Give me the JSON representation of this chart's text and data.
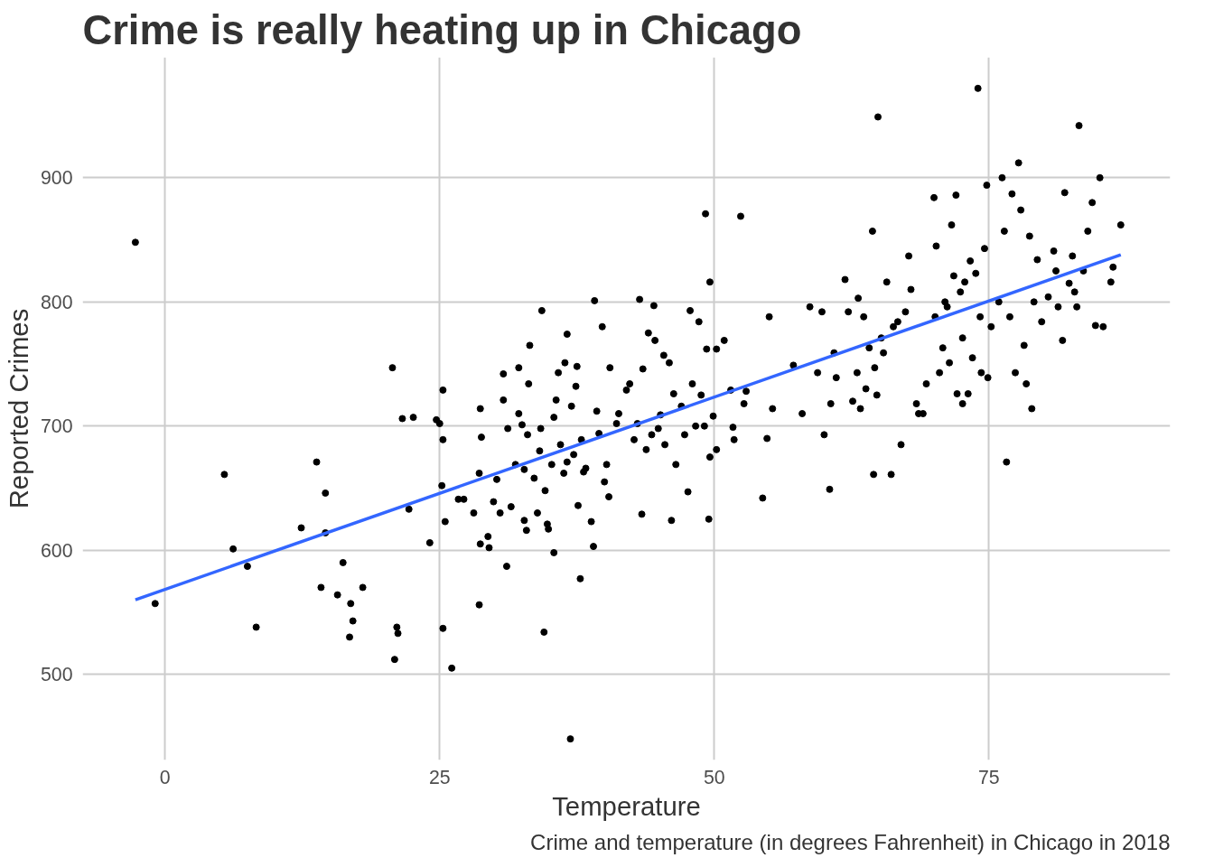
{
  "chart_data": {
    "type": "scatter",
    "title": "Crime is really heating up in Chicago",
    "xlabel": "Temperature",
    "ylabel": "Reported Crimes",
    "annotations": [
      "Crime and temperature (in degrees Fahrenheit) in Chicago in 2018"
    ],
    "xlim": [
      -7.5,
      91.5
    ],
    "ylim": [
      431,
      997
    ],
    "xticks": [
      0,
      25,
      50,
      75
    ],
    "yticks": [
      500,
      600,
      700,
      800,
      900
    ],
    "grid": true,
    "series": [
      {
        "marker": "circle",
        "color": "#000000",
        "x": [
          -2.7,
          -0.9,
          5.4,
          6.2,
          7.5,
          8.3,
          12.4,
          13.8,
          14.2,
          14.6,
          14.6,
          15.7,
          16.2,
          16.9,
          17.1,
          16.8,
          18.0,
          20.7,
          20.9,
          21.1,
          21.2,
          21.6,
          22.6,
          22.2,
          24.1,
          24.7,
          25.0,
          25.2,
          25.3,
          25.3,
          25.3,
          25.5,
          26.1,
          26.7,
          27.2,
          28.1,
          28.6,
          28.7,
          28.7,
          28.6,
          28.8,
          29.4,
          29.5,
          29.9,
          30.2,
          30.5,
          30.8,
          30.8,
          31.1,
          31.2,
          31.5,
          31.9,
          32.2,
          32.2,
          32.5,
          32.7,
          32.7,
          32.9,
          33.0,
          33.1,
          33.2,
          33.6,
          33.9,
          34.1,
          34.2,
          34.3,
          34.5,
          34.6,
          34.8,
          34.9,
          35.2,
          35.4,
          35.4,
          35.6,
          35.8,
          36.0,
          36.3,
          36.4,
          36.6,
          36.6,
          36.9,
          37.0,
          37.2,
          37.4,
          37.5,
          37.6,
          37.8,
          37.9,
          38.1,
          38.3,
          38.8,
          39.0,
          39.1,
          39.3,
          39.5,
          39.8,
          40.0,
          40.2,
          40.4,
          40.5,
          41.1,
          41.3,
          42.0,
          42.3,
          42.7,
          43.0,
          43.2,
          43.4,
          43.5,
          43.8,
          44.0,
          44.3,
          44.5,
          44.6,
          44.9,
          45.1,
          45.4,
          45.5,
          45.9,
          46.1,
          46.3,
          46.5,
          47.0,
          47.3,
          47.6,
          47.8,
          48.0,
          48.3,
          48.6,
          48.8,
          49.1,
          49.2,
          49.3,
          49.5,
          49.6,
          49.6,
          49.9,
          50.2,
          50.2,
          50.9,
          51.5,
          51.7,
          51.8,
          52.4,
          52.7,
          52.9,
          54.4,
          54.8,
          55.0,
          55.3,
          57.2,
          58.0,
          58.7,
          59.4,
          59.8,
          60.0,
          60.5,
          60.6,
          60.9,
          61.1,
          61.9,
          62.2,
          62.6,
          63.0,
          63.1,
          63.3,
          63.6,
          63.8,
          64.1,
          64.4,
          64.5,
          64.6,
          64.8,
          64.9,
          65.2,
          65.4,
          65.7,
          66.1,
          66.3,
          66.7,
          67.0,
          67.4,
          67.7,
          67.9,
          68.4,
          68.6,
          69.0,
          69.3,
          70.0,
          70.1,
          70.2,
          70.5,
          70.8,
          71.0,
          71.2,
          71.4,
          71.6,
          71.8,
          72.0,
          72.1,
          72.4,
          72.6,
          72.6,
          72.8,
          73.1,
          73.3,
          73.5,
          73.8,
          74.0,
          74.2,
          74.3,
          74.6,
          74.8,
          74.9,
          75.2,
          75.9,
          76.2,
          76.4,
          76.6,
          76.9,
          77.1,
          77.4,
          77.7,
          77.9,
          78.2,
          78.4,
          78.7,
          78.9,
          79.1,
          79.4,
          79.8,
          80.4,
          80.9,
          81.1,
          81.3,
          81.7,
          81.9,
          82.3,
          82.6,
          82.8,
          83.0,
          83.2,
          83.6,
          84.0,
          84.4,
          84.7,
          85.1,
          85.4,
          86.1,
          86.3,
          87.0
        ],
        "values": [
          848,
          557,
          661,
          601,
          587,
          538,
          618,
          671,
          570,
          646,
          614,
          564,
          590,
          557,
          543,
          530,
          570,
          747,
          512,
          538,
          533,
          706,
          707,
          633,
          606,
          705,
          702,
          652,
          689,
          729,
          537,
          623,
          505,
          641,
          641,
          630,
          662,
          714,
          605,
          556,
          691,
          611,
          602,
          639,
          657,
          630,
          742,
          721,
          587,
          698,
          635,
          669,
          747,
          710,
          701,
          665,
          624,
          616,
          693,
          734,
          765,
          658,
          630,
          680,
          698,
          793,
          534,
          648,
          621,
          617,
          669,
          707,
          598,
          721,
          743,
          685,
          662,
          751,
          774,
          671,
          448,
          716,
          677,
          732,
          748,
          636,
          577,
          689,
          663,
          666,
          623,
          603,
          801,
          712,
          694,
          780,
          655,
          669,
          643,
          747,
          702,
          710,
          729,
          734,
          689,
          702,
          802,
          629,
          746,
          681,
          775,
          693,
          797,
          769,
          698,
          709,
          757,
          685,
          751,
          624,
          726,
          669,
          716,
          693,
          647,
          793,
          734,
          700,
          784,
          725,
          700,
          871,
          762,
          625,
          675,
          816,
          708,
          762,
          681,
          769,
          729,
          699,
          689,
          869,
          718,
          728,
          642,
          690,
          788,
          714,
          749,
          710,
          796,
          743,
          792,
          693,
          649,
          718,
          759,
          739,
          818,
          792,
          720,
          743,
          803,
          714,
          788,
          730,
          763,
          857,
          661,
          747,
          725,
          949,
          771,
          759,
          816,
          661,
          780,
          784,
          685,
          792,
          837,
          810,
          718,
          710,
          710,
          734,
          884,
          788,
          845,
          743,
          763,
          800,
          796,
          751,
          862,
          821,
          886,
          726,
          808,
          718,
          771,
          816,
          726,
          833,
          755,
          823,
          972,
          788,
          743,
          843,
          894,
          739,
          780,
          800,
          900,
          857,
          671,
          788,
          887,
          743,
          912,
          874,
          765,
          734,
          853,
          714,
          800,
          834,
          784,
          804,
          841,
          825,
          796,
          769,
          888,
          815,
          837,
          808,
          796,
          942,
          825,
          857,
          880,
          781,
          900,
          780,
          816,
          828,
          862
        ]
      },
      {
        "type": "line",
        "color": "#3366ff",
        "x": [
          -2.7,
          87.0
        ],
        "values": [
          560,
          838
        ]
      }
    ]
  }
}
